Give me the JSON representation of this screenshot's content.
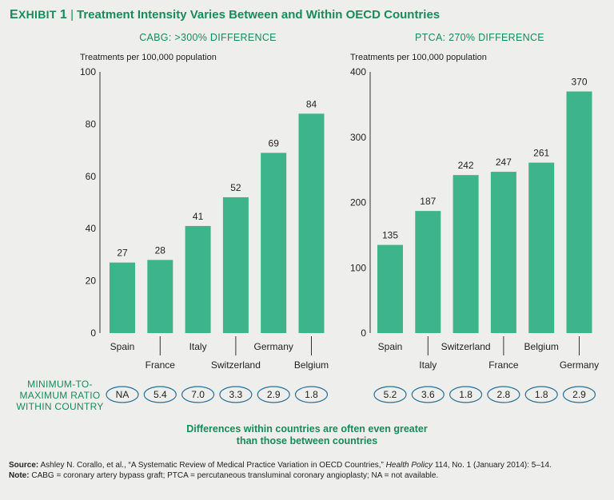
{
  "header": {
    "exhibit_small": "E",
    "exhibit_rest": "XHIBIT",
    "exhibit_num": "1",
    "title": "Treatment Intensity Varies Between and Within OECD Countries"
  },
  "ratio_label": [
    "MINIMUM-TO-",
    "MAXIMUM RATIO",
    "WITHIN COUNTRY"
  ],
  "note": [
    "Differences within countries are often even greater",
    "than those between countries"
  ],
  "footer": {
    "source_label": "Source:",
    "source_text_1": "Ashley N. Corallo, et al., “A Systematic Review of Medical Practice Variation in OECD Countries,”",
    "source_journal": "Health Policy",
    "source_text_2": "114, No. 1 (January 2014): 5–14.",
    "note_label": "Note:",
    "note_text": "CABG = coronary artery bypass graft; PTCA = percutaneous transluminal coronary angioplasty; NA = not available."
  },
  "colors": {
    "bar": "#3eb48d",
    "accent": "#1a8a5a",
    "oval": "#2a6f9a"
  },
  "chart_data": [
    {
      "type": "bar",
      "title": "CABG: >300% DIFFERENCE",
      "ylabel": "Treatments per 100,000 population",
      "categories": [
        "Spain",
        "France",
        "Italy",
        "Switzerland",
        "Germany",
        "Belgium"
      ],
      "values": [
        27,
        28,
        41,
        52,
        69,
        84
      ],
      "ratios": [
        "NA",
        "5.4",
        "7.0",
        "3.3",
        "2.9",
        "1.8"
      ],
      "ylim": [
        0,
        100
      ],
      "yticks": [
        0,
        20,
        40,
        60,
        80,
        100
      ]
    },
    {
      "type": "bar",
      "title": "PTCA: 270% DIFFERENCE",
      "ylabel": "Treatments per 100,000 population",
      "categories": [
        "Spain",
        "Italy",
        "Switzerland",
        "France",
        "Belgium",
        "Germany"
      ],
      "values": [
        135,
        187,
        242,
        247,
        261,
        370
      ],
      "ratios": [
        "5.2",
        "3.6",
        "1.8",
        "2.8",
        "1.8",
        "2.9"
      ],
      "ylim": [
        0,
        400
      ],
      "yticks": [
        0,
        100,
        200,
        300,
        400
      ]
    }
  ]
}
